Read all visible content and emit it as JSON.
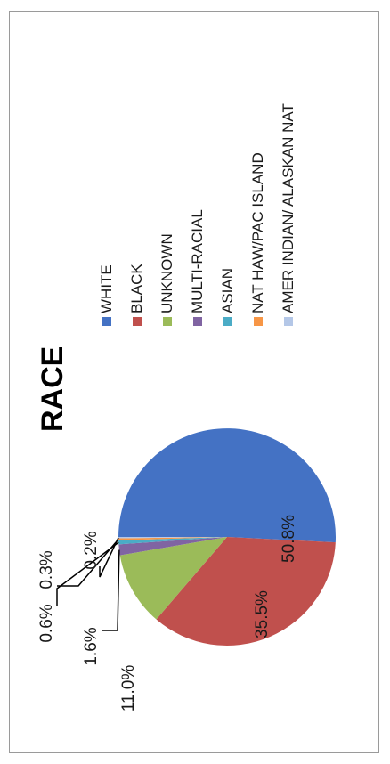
{
  "colors": {
    "white": "#4472C4",
    "black": "#C0504D",
    "unknown": "#9BBB59",
    "multi_racial": "#8064A2",
    "asian": "#4BACC6",
    "nat_haw": "#F79646",
    "amer_indian": "#B4C7E7"
  },
  "chart_data": {
    "type": "pie",
    "title": "RACE",
    "orientation": "rotated 90° counter-clockwise",
    "legend_placement": "right of pie (rotated)",
    "categories": [
      "WHITE",
      "BLACK",
      "UNKNOWN",
      "MULTI-RACIAL",
      "ASIAN",
      "NAT HAW/PAC ISLAND",
      "AMER INDIAN/ ALASKAN NAT"
    ],
    "values": [
      50.8,
      35.5,
      11.0,
      1.6,
      0.6,
      0.3,
      0.2
    ],
    "data_labels": [
      "50.8%",
      "35.5%",
      "11.0%",
      "1.6%",
      "0.6%",
      "0.3%",
      "0.2%"
    ],
    "series": [
      {
        "name": "WHITE",
        "value": 50.8,
        "label": "50.8%",
        "color": "#4472C4"
      },
      {
        "name": "BLACK",
        "value": 35.5,
        "label": "35.5%",
        "color": "#C0504D"
      },
      {
        "name": "UNKNOWN",
        "value": 11.0,
        "label": "11.0%",
        "color": "#9BBB59"
      },
      {
        "name": "MULTI-RACIAL",
        "value": 1.6,
        "label": "1.6%",
        "color": "#8064A2"
      },
      {
        "name": "ASIAN",
        "value": 0.6,
        "label": "0.6%",
        "color": "#4BACC6"
      },
      {
        "name": "NAT HAW/PAC ISLAND",
        "value": 0.3,
        "label": "0.3%",
        "color": "#F79646"
      },
      {
        "name": "AMER INDIAN/ ALASKAN NAT",
        "value": 0.2,
        "label": "0.2%",
        "color": "#B4C7E7"
      }
    ]
  }
}
